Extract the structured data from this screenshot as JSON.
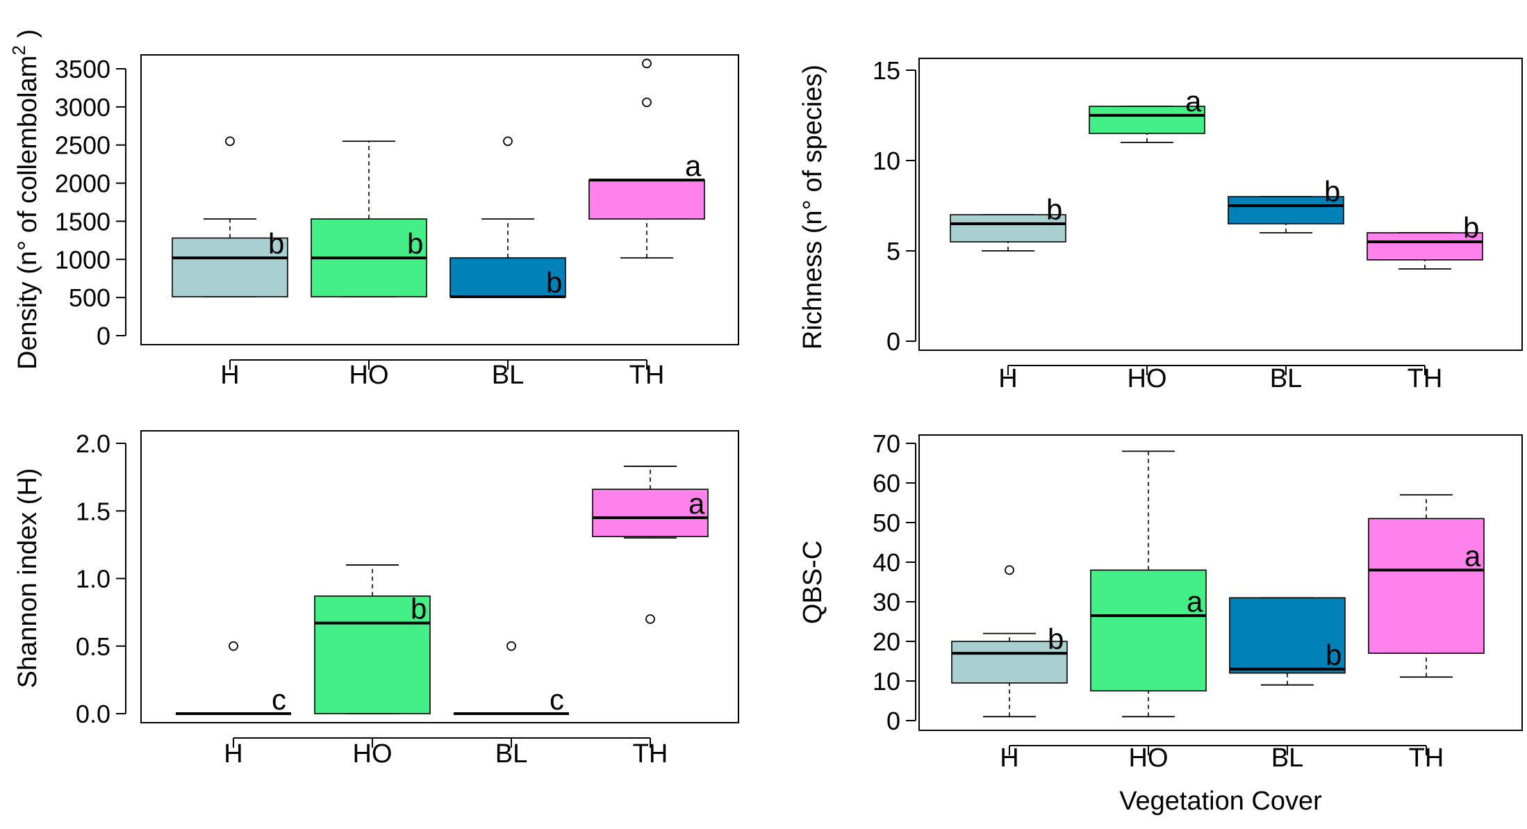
{
  "chart_data": [
    {
      "type": "boxplot",
      "id": "density",
      "ylabel_main": "Density (n° of collembolam",
      "ylabel_sup": "2",
      "ylabel_end": ")",
      "xlabel": "",
      "ylim": [
        0,
        3500
      ],
      "yticks": [
        0,
        500,
        1000,
        1500,
        2000,
        2500,
        3000,
        3500
      ],
      "categories": [
        "H",
        "HO",
        "BL",
        "TH"
      ],
      "colors": [
        "#a9cfd0",
        "#45ef88",
        "#0081b8",
        "#ff82ec"
      ],
      "boxes": [
        {
          "min": 510,
          "q1": 510,
          "median": 1020,
          "q3": 1280,
          "max": 1530,
          "outliers": [
            2550
          ],
          "letter": "b"
        },
        {
          "min": 510,
          "q1": 510,
          "median": 1020,
          "q3": 1530,
          "max": 2550,
          "outliers": [],
          "letter": "b"
        },
        {
          "min": 510,
          "q1": 510,
          "median": 510,
          "q3": 1020,
          "max": 1530,
          "outliers": [
            2550
          ],
          "letter": "b"
        },
        {
          "min": 1020,
          "q1": 1530,
          "median": 2040,
          "q3": 2040,
          "max": 2040,
          "outliers": [
            3060,
            3570
          ],
          "letter": "a"
        }
      ]
    },
    {
      "type": "boxplot",
      "id": "richness",
      "ylabel_main": "Richness (n° of species)",
      "xlabel": "",
      "ylim": [
        0,
        15
      ],
      "yticks": [
        0,
        5,
        10,
        15
      ],
      "categories": [
        "H",
        "HO",
        "BL",
        "TH"
      ],
      "colors": [
        "#a9cfd0",
        "#45ef88",
        "#0081b8",
        "#ff82ec"
      ],
      "boxes": [
        {
          "min": 5,
          "q1": 5.5,
          "median": 6.5,
          "q3": 7,
          "max": 7,
          "outliers": [],
          "letter": "b"
        },
        {
          "min": 11,
          "q1": 11.5,
          "median": 12.5,
          "q3": 13,
          "max": 13,
          "outliers": [],
          "letter": "a"
        },
        {
          "min": 6,
          "q1": 6.5,
          "median": 7.5,
          "q3": 8,
          "max": 8,
          "outliers": [],
          "letter": "b"
        },
        {
          "min": 4,
          "q1": 4.5,
          "median": 5.5,
          "q3": 6,
          "max": 6,
          "outliers": [],
          "letter": "b"
        }
      ]
    },
    {
      "type": "boxplot",
      "id": "shannon",
      "ylabel_main": "Shannon index (H)",
      "xlabel": "",
      "ylim": [
        0,
        2.0
      ],
      "yticks": [
        "0.0",
        "0.5",
        "1.0",
        "1.5",
        "2.0"
      ],
      "categories": [
        "H",
        "HO",
        "BL",
        "TH"
      ],
      "colors": [
        "#a9cfd0",
        "#45ef88",
        "#0081b8",
        "#ff82ec"
      ],
      "boxes": [
        {
          "min": 0,
          "q1": 0,
          "median": 0,
          "q3": 0,
          "max": 0,
          "outliers": [
            0.5
          ],
          "letter": "c"
        },
        {
          "min": 0,
          "q1": 0,
          "median": 0.67,
          "q3": 0.87,
          "max": 1.1,
          "outliers": [],
          "letter": "b"
        },
        {
          "min": 0,
          "q1": 0,
          "median": 0,
          "q3": 0,
          "max": 0,
          "outliers": [
            0.5
          ],
          "letter": "c"
        },
        {
          "min": 1.3,
          "q1": 1.31,
          "median": 1.45,
          "q3": 1.66,
          "max": 1.83,
          "outliers": [
            0.7
          ],
          "letter": "a"
        }
      ]
    },
    {
      "type": "boxplot",
      "id": "qbsc",
      "ylabel_main": "QBS-C",
      "xlabel": "Vegetation Cover",
      "ylim": [
        0,
        70
      ],
      "yticks": [
        0,
        10,
        20,
        30,
        40,
        50,
        60,
        70
      ],
      "categories": [
        "H",
        "HO",
        "BL",
        "TH"
      ],
      "colors": [
        "#a9cfd0",
        "#45ef88",
        "#0081b8",
        "#ff82ec"
      ],
      "boxes": [
        {
          "min": 1,
          "q1": 9.5,
          "median": 17,
          "q3": 20,
          "max": 22,
          "outliers": [
            38
          ],
          "letter": "b"
        },
        {
          "min": 1,
          "q1": 7.5,
          "median": 26.5,
          "q3": 38,
          "max": 68,
          "outliers": [],
          "letter": "a"
        },
        {
          "min": 9,
          "q1": 12,
          "median": 13,
          "q3": 31,
          "max": 31,
          "outliers": [],
          "letter": "b"
        },
        {
          "min": 11,
          "q1": 17,
          "median": 38,
          "q3": 51,
          "max": 57,
          "outliers": [],
          "letter": "a"
        }
      ]
    }
  ]
}
